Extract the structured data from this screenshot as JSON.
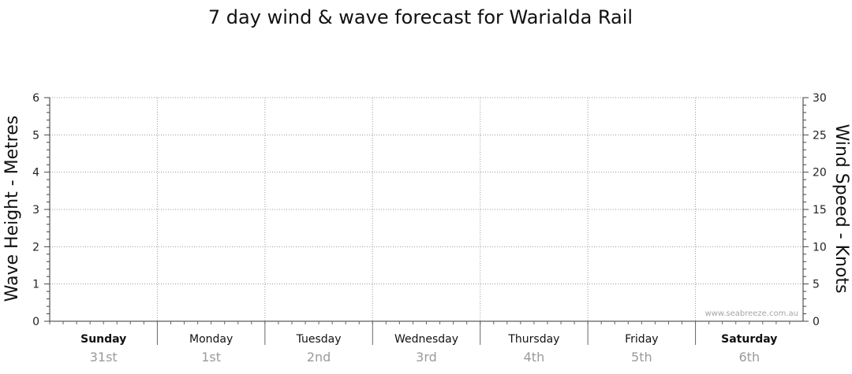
{
  "chart_data": {
    "type": "line",
    "title": "7 day wind & wave forecast for Warialda Rail",
    "ylabel_left": "Wave Height - Metres",
    "ylabel_right": "Wind Speed - Knots",
    "ylim_left": [
      0,
      6
    ],
    "ylim_right": [
      0,
      30
    ],
    "yticks_left": [
      "0",
      "1",
      "2",
      "3",
      "4",
      "5",
      "6"
    ],
    "yticks_right": [
      "0",
      "5",
      "10",
      "15",
      "20",
      "25",
      "30"
    ],
    "grid": true,
    "days": [
      {
        "name": "Sunday",
        "date": "31st",
        "bold": true
      },
      {
        "name": "Monday",
        "date": "1st",
        "bold": false
      },
      {
        "name": "Tuesday",
        "date": "2nd",
        "bold": false
      },
      {
        "name": "Wednesday",
        "date": "3rd",
        "bold": false
      },
      {
        "name": "Thursday",
        "date": "4th",
        "bold": false
      },
      {
        "name": "Friday",
        "date": "5th",
        "bold": false
      },
      {
        "name": "Saturday",
        "date": "6th",
        "bold": true
      }
    ],
    "series": [],
    "watermark": "www.seabreeze.com.au"
  }
}
